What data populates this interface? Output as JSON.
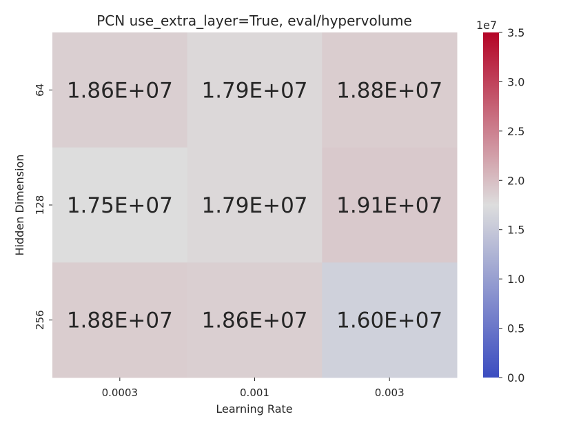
{
  "chart_data": {
    "type": "heatmap",
    "title": "PCN use_extra_layer=True, eval/hypervolume",
    "xlabel": "Learning Rate",
    "ylabel": "Hidden Dimension",
    "x_categories": [
      "0.0003",
      "0.001",
      "0.003"
    ],
    "y_categories": [
      "64",
      "128",
      "256"
    ],
    "values": [
      [
        18600000,
        17900000,
        18800000
      ],
      [
        17500000,
        17900000,
        19100000
      ],
      [
        18800000,
        18600000,
        16000000
      ]
    ],
    "cell_labels": [
      [
        "1.86E+07",
        "1.79E+07",
        "1.88E+07"
      ],
      [
        "1.75E+07",
        "1.79E+07",
        "1.91E+07"
      ],
      [
        "1.88E+07",
        "1.86E+07",
        "1.60E+07"
      ]
    ],
    "colorbar": {
      "colormap": "coolwarm",
      "range": [
        0,
        35000000
      ],
      "multiplier_label": "1e7",
      "ticks": [
        0,
        5000000,
        10000000,
        15000000,
        20000000,
        25000000,
        30000000,
        35000000
      ],
      "tick_labels": [
        "0.0",
        "0.5",
        "1.0",
        "1.5",
        "2.0",
        "2.5",
        "3.0",
        "3.5"
      ],
      "low_color": "#3b4cc0",
      "mid_color": "#dddddd",
      "high_color": "#b40426"
    }
  }
}
